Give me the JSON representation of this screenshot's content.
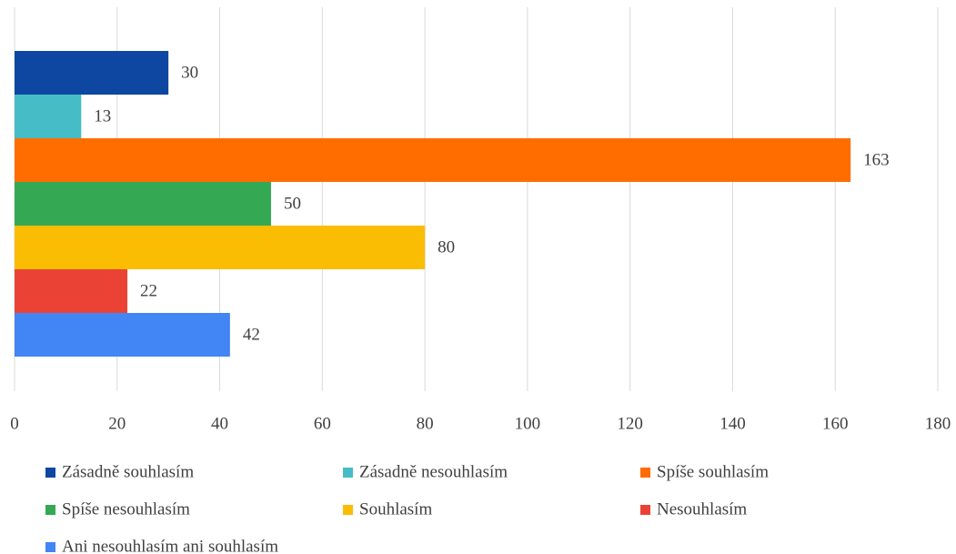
{
  "chart_data": {
    "type": "bar",
    "orientation": "horizontal",
    "categories": [
      null
    ],
    "series": [
      {
        "name": "Zásadně souhlasím",
        "color": "#0d47a1",
        "values": [
          30
        ]
      },
      {
        "name": "Zásadně nesouhlasím",
        "color": "#46bdc6",
        "values": [
          13
        ]
      },
      {
        "name": "Spíše souhlasím",
        "color": "#ff6d01",
        "values": [
          163
        ]
      },
      {
        "name": "Spíše nesouhlasím",
        "color": "#34a853",
        "values": [
          50
        ]
      },
      {
        "name": "Souhlasím",
        "color": "#fbbc04",
        "values": [
          80
        ]
      },
      {
        "name": "Nesouhlasím",
        "color": "#ea4335",
        "values": [
          22
        ]
      },
      {
        "name": "Ani nesouhlasím ani souhlasím",
        "color": "#4285f4",
        "values": [
          42
        ]
      }
    ],
    "xlim": [
      0,
      180
    ],
    "xticks": [
      0,
      20,
      40,
      60,
      80,
      100,
      120,
      140,
      160,
      180
    ],
    "grid": true,
    "legend": "bottom"
  }
}
